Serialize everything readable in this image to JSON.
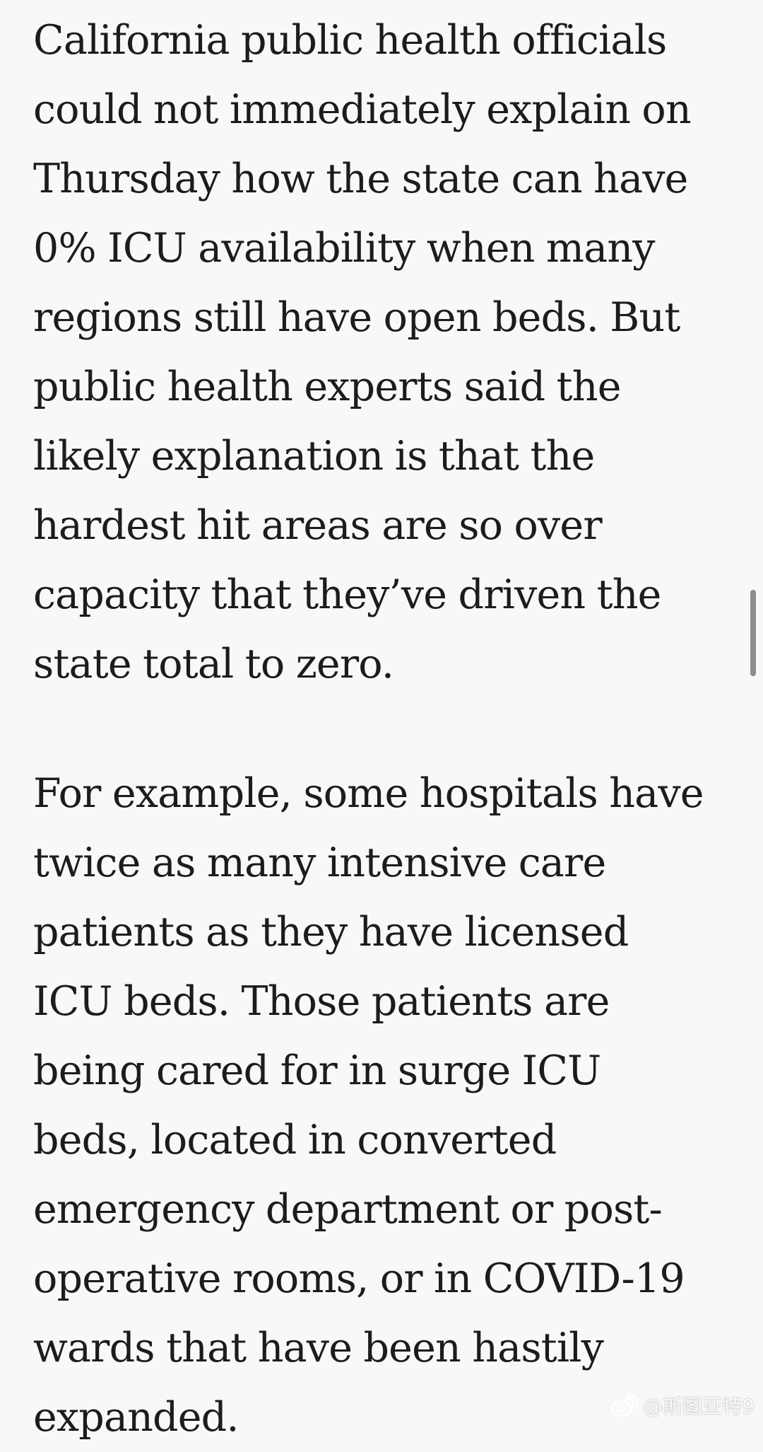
{
  "article": {
    "paragraphs": [
      "California public health officials\ncould not immediately explain on\nThursday how the state can have\n0% ICU availability when many\nregions still have open beds. But\npublic health experts said the\nlikely explanation is that the\nhardest hit areas are so over\ncapacity that they’ve driven the\nstate total to zero.",
      "For example, some hospitals have\ntwice as many intensive care\npatients as they have licensed\nICU beds. Those patients are\nbeing cared for in surge ICU\nbeds, located in converted\nemergency department or post-\noperative rooms, or in COVID-19\nwards that have been hastily\nexpanded."
    ]
  },
  "watermark": {
    "icon": "weibo-icon",
    "text": "@斯图亚特9"
  },
  "scroll": {
    "position": 0.46
  }
}
